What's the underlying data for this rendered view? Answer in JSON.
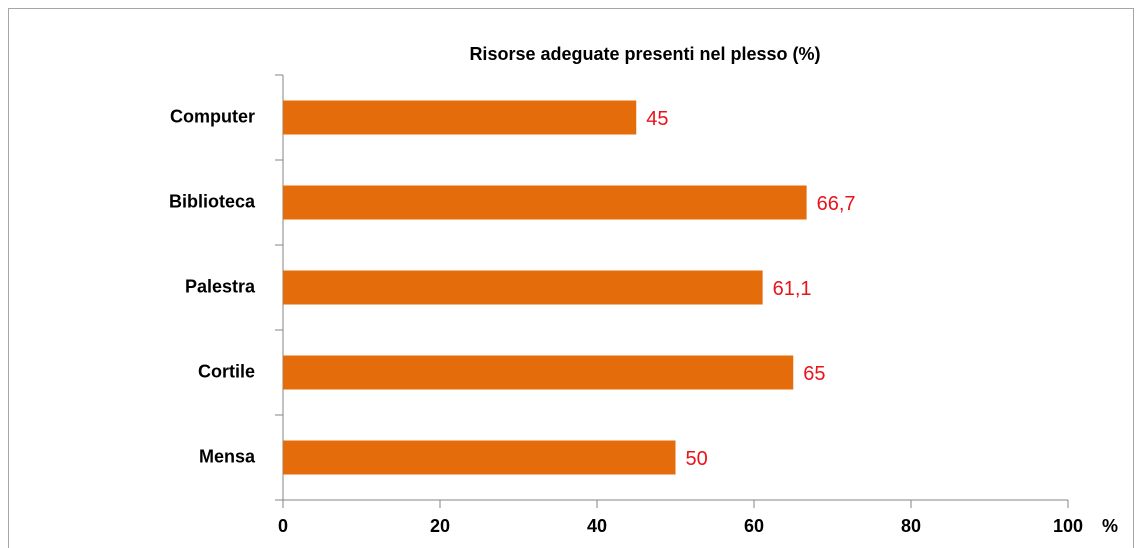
{
  "chart_data": {
    "type": "bar",
    "orientation": "horizontal",
    "title": "Risorse adeguate presenti nel plesso  (%)",
    "categories": [
      "Computer",
      "Biblioteca",
      "Palestra",
      "Cortile",
      "Mensa"
    ],
    "values": [
      45,
      66.7,
      61.1,
      65,
      50
    ],
    "value_labels": [
      "45",
      "66,7",
      "61,1",
      "65",
      "50"
    ],
    "color": "#e46c0a",
    "value_label_color": "#e8141c",
    "xlabel": "%",
    "xlim": [
      0,
      100
    ],
    "xticks": [
      0,
      20,
      40,
      60,
      80,
      100
    ],
    "grid": false
  }
}
